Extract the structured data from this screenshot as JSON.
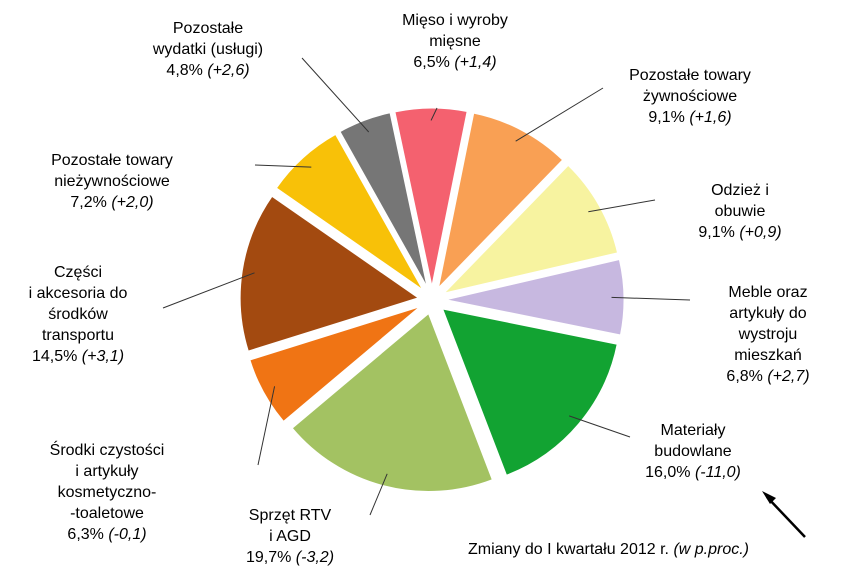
{
  "chart_data": {
    "type": "pie",
    "annotation": "Zmiany do I kwartału 2012 r.",
    "annotation_unit": "(w p.proc.)",
    "categories": [
      "Mięso i wyroby\nmięsne",
      "Pozostałe towary\nżywnościowe",
      "Odzież i obuwie",
      "Meble oraz\nartykuły do\nwystroju\nmieszkań",
      "Materiały\nbudowlane",
      "Sprzęt RTV\ni AGD",
      "Środki czystości\ni artykuły\nkosmetyczno-\n-toaletowe",
      "Części\ni akcesoria do\nśrodków\ntransportu",
      "Pozostałe towary\nnieżywnościowe",
      "Pozostałe\nwydatki (usługi)"
    ],
    "values": [
      6.5,
      9.1,
      9.1,
      6.8,
      16.0,
      19.7,
      6.3,
      14.5,
      7.2,
      4.8
    ],
    "value_labels": [
      "6,5%",
      "9,1%",
      "9,1%",
      "6,8%",
      "16,0%",
      "19,7%",
      "6,3%",
      "14,5%",
      "7,2%",
      "4,8%"
    ],
    "changes": [
      1.4,
      1.6,
      0.9,
      2.7,
      -11.0,
      -3.2,
      -0.1,
      3.1,
      2.0,
      2.6
    ],
    "change_labels": [
      "(+1,4)",
      "(+1,6)",
      "(+0,9)",
      "(+2,7)",
      "(-11,0)",
      "(-3,2)",
      "(-0,1)",
      "(+3,1)",
      "(+2,0)",
      "(+2,6)"
    ],
    "colors": [
      "#f4616f",
      "#f9a054",
      "#f7f3a0",
      "#c7b8e0",
      "#12a332",
      "#a3c262",
      "#f07414",
      "#a34a10",
      "#f8c108",
      "#767676"
    ]
  }
}
